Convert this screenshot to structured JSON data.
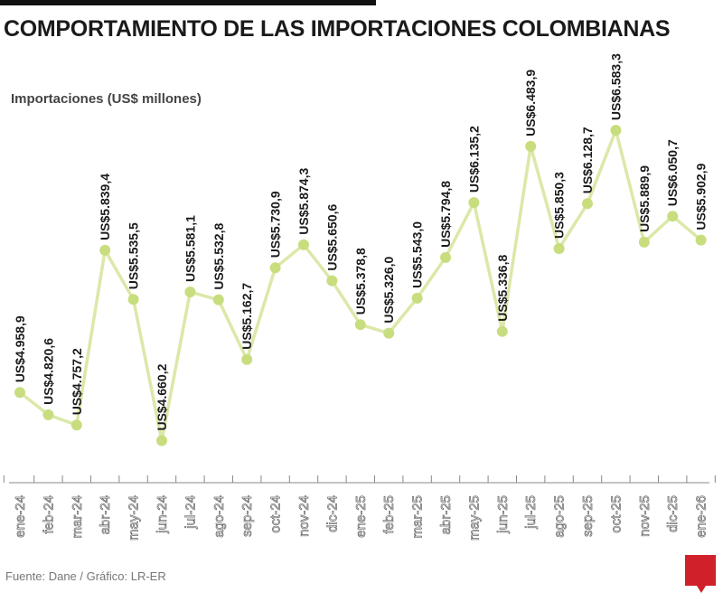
{
  "chart_data": {
    "type": "line",
    "title": "COMPORTAMIENTO DE LAS IMPORTACIONES COLOMBIANAS",
    "ylabel": "Importaciones (US$ millones)",
    "xlabel": "",
    "categories": [
      "ene-24",
      "feb-24",
      "mar-24",
      "abr-24",
      "may-24",
      "jun-24",
      "jul-24",
      "ago-24",
      "sep-24",
      "oct-24",
      "nov-24",
      "dic-24",
      "ene-25",
      "feb-25",
      "mar-25",
      "abr-25",
      "may-25",
      "jun-25",
      "jul-25",
      "ago-25",
      "sep-25",
      "oct-25",
      "nov-25",
      "dic-25",
      "ene-26"
    ],
    "values": [
      4958.9,
      4820.6,
      4757.2,
      5839.4,
      5535.5,
      4660.2,
      5581.1,
      5532.8,
      5162.7,
      5730.9,
      5874.3,
      5650.6,
      5378.8,
      5326.0,
      5543.0,
      5794.8,
      6135.2,
      5336.8,
      6483.9,
      5850.3,
      6128.7,
      6583.3,
      5889.9,
      6050.7,
      5902.9
    ],
    "data_labels": [
      "US$4.958,9",
      "US$4.820,6",
      "US$4.757,2",
      "US$5.839,4",
      "US$5.535,5",
      "US$4.660,2",
      "US$5.581,1",
      "US$5.532,8",
      "US$5.162,7",
      "US$5.730,9",
      "US$5.874,3",
      "US$5.650,6",
      "US$5.378,8",
      "US$5.326,0",
      "US$5.543,0",
      "US$5.794,8",
      "US$6.135,2",
      "US$5.336,8",
      "US$6.483,9",
      "US$5.850,3",
      "US$6.128,7",
      "US$6.583,3",
      "US$5.889,9",
      "US$6.050,7",
      "US$5.902,9"
    ],
    "ylim": [
      4400,
      7390
    ],
    "grid": false,
    "colors": {
      "line": "#dbe8a8",
      "marker": "#c8dd7e",
      "text": "#1a1a1a"
    }
  },
  "source": "Fuente: Dane / Gráfico: LR-ER",
  "logo": "LR"
}
